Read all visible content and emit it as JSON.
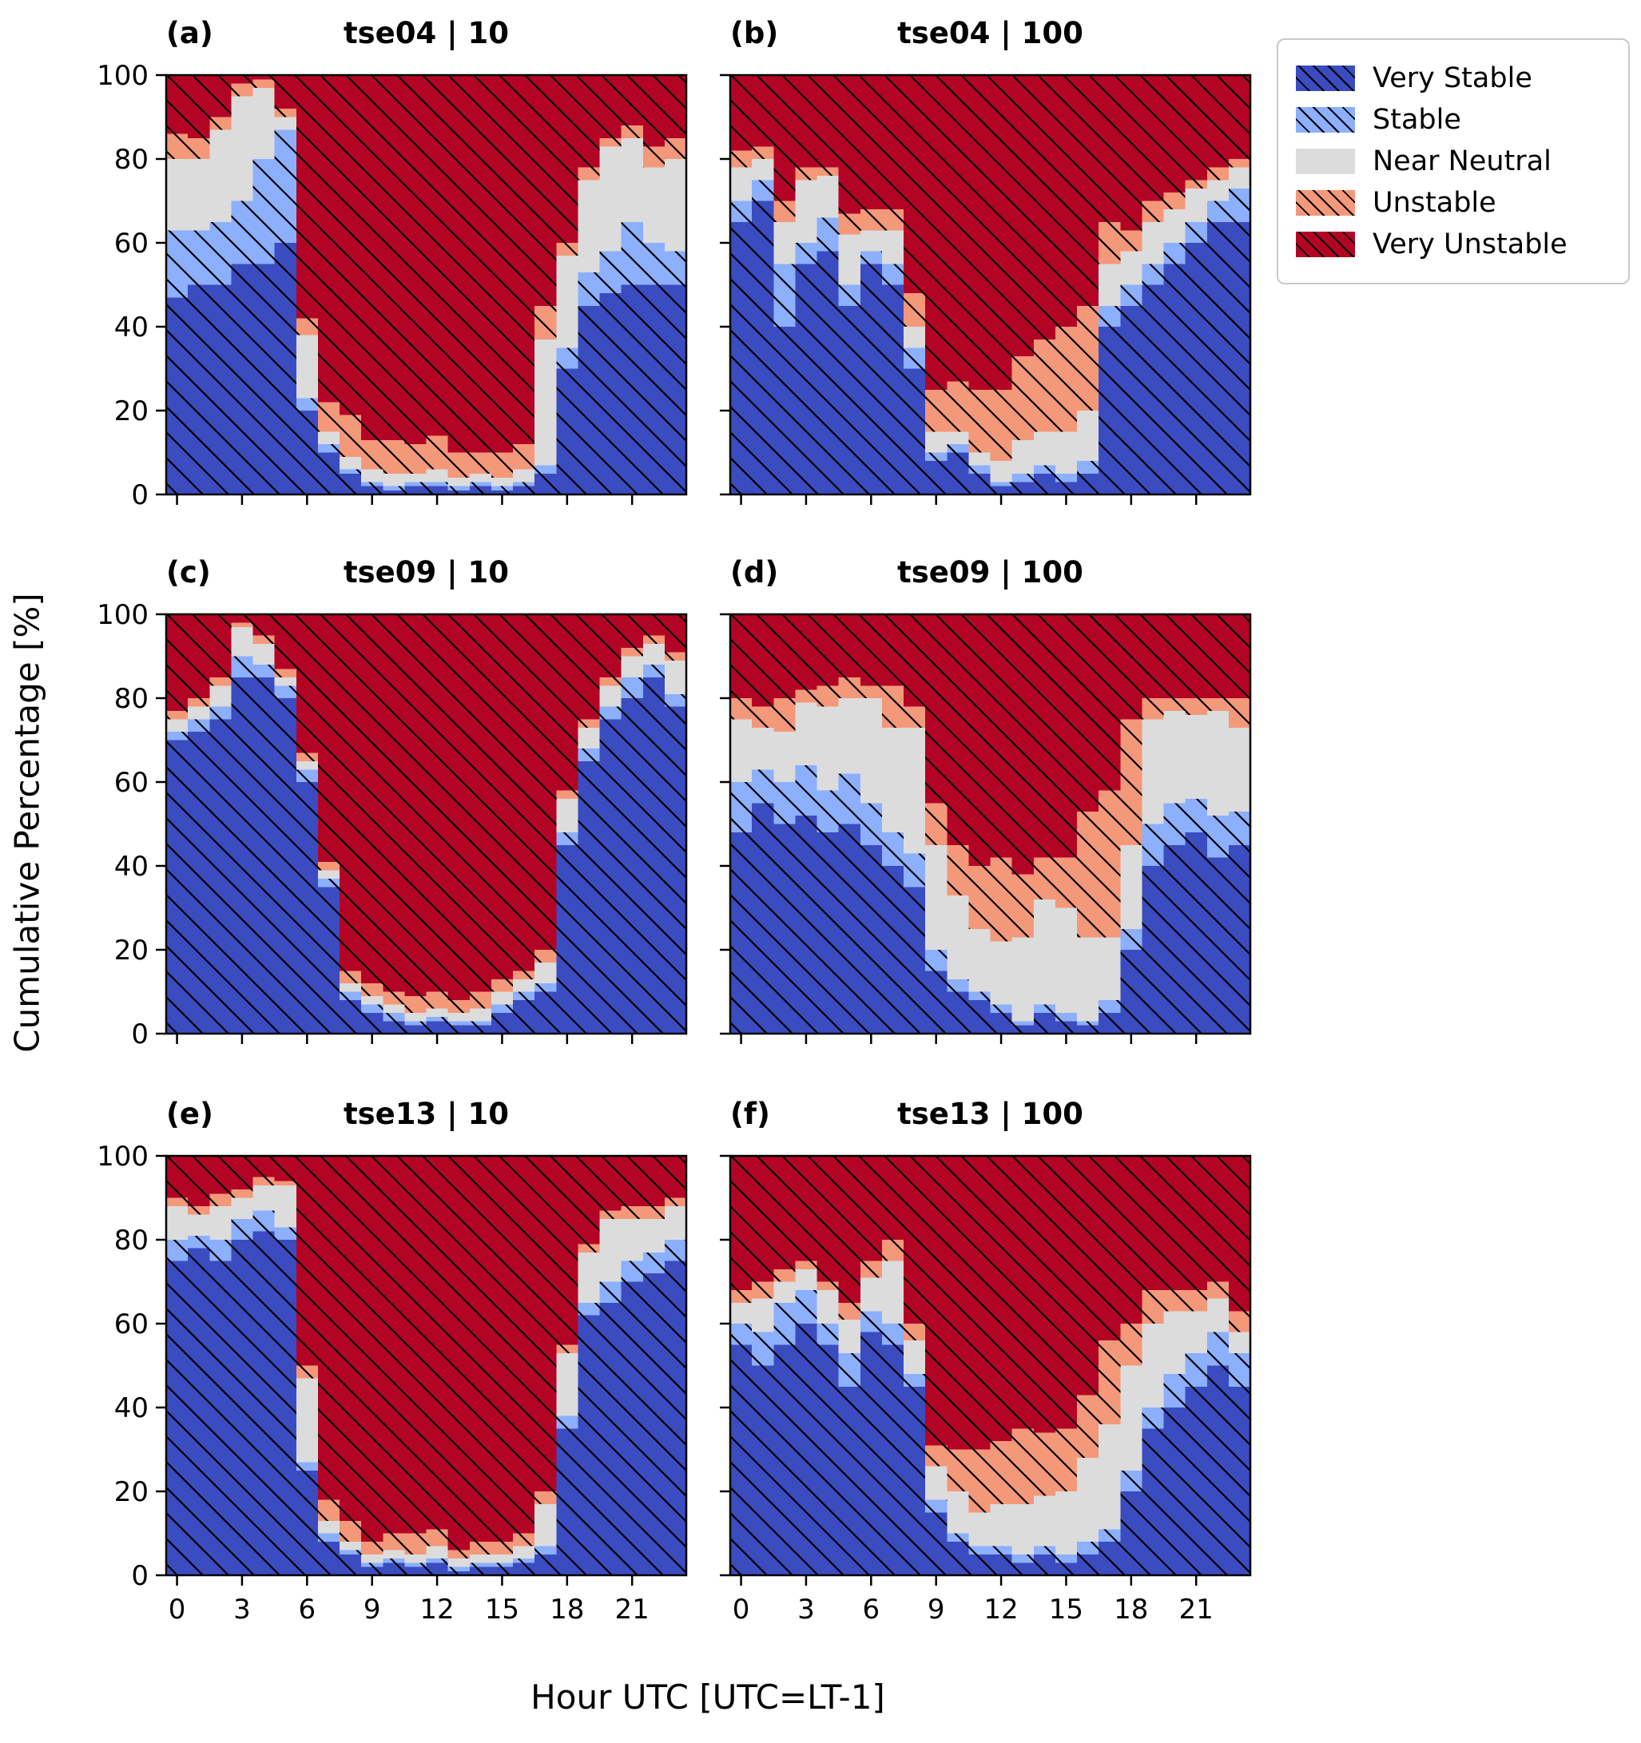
{
  "chart_data": {
    "type": "bar",
    "stacked": true,
    "xlabel": "Hour UTC [UTC=LT-1]",
    "ylabel": "Cumulative Percentage [%]",
    "ylim": [
      0,
      100
    ],
    "yticks": [
      0,
      20,
      40,
      60,
      80,
      100
    ],
    "xticks": [
      0,
      3,
      6,
      9,
      12,
      15,
      18,
      21
    ],
    "hours": [
      0,
      1,
      2,
      3,
      4,
      5,
      6,
      7,
      8,
      9,
      10,
      11,
      12,
      13,
      14,
      15,
      16,
      17,
      18,
      19,
      20,
      21,
      22,
      23
    ],
    "categories": [
      "Very Stable",
      "Stable",
      "Near Neutral",
      "Unstable",
      "Very Unstable"
    ],
    "colors": {
      "Very Stable": "#3b4cc0",
      "Stable": "#8caffe",
      "Near Neutral": "#dcdcdc",
      "Unstable": "#f4987a",
      "Very Unstable": "#b40426"
    },
    "hatched": [
      true,
      true,
      false,
      true,
      true
    ],
    "panels": [
      {
        "id": "a",
        "panel_label": "(a)",
        "title": "tse04 | 10",
        "show_yticklabels": true,
        "show_xticklabels": false,
        "series": {
          "Very Stable": [
            47,
            50,
            50,
            55,
            55,
            60,
            20,
            10,
            5,
            2,
            1,
            2,
            2,
            1,
            2,
            1,
            2,
            5,
            30,
            45,
            48,
            50,
            50,
            50
          ],
          "Stable": [
            16,
            13,
            15,
            15,
            25,
            27,
            3,
            2,
            1,
            1,
            1,
            1,
            1,
            1,
            1,
            1,
            1,
            2,
            5,
            8,
            10,
            15,
            10,
            8
          ],
          "Near Neutral": [
            17,
            17,
            22,
            25,
            17,
            3,
            15,
            3,
            3,
            3,
            3,
            2,
            3,
            2,
            2,
            2,
            3,
            30,
            22,
            22,
            25,
            20,
            18,
            22
          ],
          "Unstable": [
            6,
            5,
            3,
            3,
            2,
            2,
            4,
            7,
            10,
            7,
            8,
            7,
            8,
            6,
            5,
            6,
            6,
            8,
            3,
            3,
            2,
            3,
            5,
            5
          ],
          "Very Unstable": [
            14,
            15,
            10,
            2,
            1,
            8,
            58,
            78,
            81,
            87,
            87,
            88,
            86,
            90,
            90,
            90,
            88,
            55,
            40,
            22,
            15,
            12,
            17,
            15
          ]
        }
      },
      {
        "id": "b",
        "panel_label": "(b)",
        "title": "tse04 | 100",
        "show_yticklabels": false,
        "show_xticklabels": false,
        "series": {
          "Very Stable": [
            65,
            70,
            40,
            55,
            58,
            45,
            55,
            50,
            30,
            8,
            10,
            5,
            2,
            3,
            5,
            3,
            5,
            40,
            45,
            50,
            55,
            60,
            65,
            65
          ],
          "Stable": [
            5,
            5,
            15,
            5,
            8,
            5,
            3,
            5,
            5,
            2,
            2,
            2,
            1,
            2,
            2,
            2,
            3,
            5,
            5,
            5,
            5,
            5,
            5,
            8
          ],
          "Near Neutral": [
            8,
            5,
            10,
            15,
            10,
            12,
            5,
            8,
            5,
            5,
            3,
            3,
            5,
            8,
            8,
            10,
            12,
            10,
            8,
            10,
            8,
            8,
            5,
            5
          ],
          "Unstable": [
            4,
            3,
            5,
            3,
            2,
            5,
            5,
            5,
            8,
            10,
            12,
            15,
            17,
            20,
            22,
            25,
            25,
            10,
            5,
            5,
            4,
            2,
            3,
            2
          ],
          "Very Unstable": [
            18,
            17,
            30,
            22,
            22,
            33,
            32,
            32,
            52,
            75,
            73,
            75,
            75,
            67,
            63,
            60,
            55,
            35,
            37,
            30,
            28,
            25,
            22,
            20
          ]
        }
      },
      {
        "id": "c",
        "panel_label": "(c)",
        "title": "tse09 | 10",
        "show_yticklabels": true,
        "show_xticklabels": false,
        "series": {
          "Very Stable": [
            70,
            72,
            75,
            85,
            85,
            80,
            60,
            35,
            8,
            5,
            3,
            2,
            3,
            2,
            2,
            5,
            8,
            10,
            45,
            65,
            75,
            80,
            85,
            78
          ],
          "Stable": [
            2,
            3,
            3,
            5,
            3,
            3,
            3,
            2,
            2,
            2,
            2,
            1,
            1,
            1,
            1,
            2,
            2,
            2,
            3,
            3,
            3,
            5,
            3,
            3
          ],
          "Near Neutral": [
            3,
            3,
            5,
            7,
            5,
            2,
            2,
            2,
            2,
            2,
            2,
            2,
            2,
            2,
            3,
            3,
            3,
            5,
            8,
            5,
            5,
            5,
            5,
            8
          ],
          "Unstable": [
            2,
            2,
            2,
            1,
            2,
            2,
            2,
            2,
            3,
            3,
            3,
            4,
            4,
            3,
            4,
            3,
            2,
            3,
            2,
            2,
            2,
            2,
            2,
            2
          ],
          "Very Unstable": [
            23,
            20,
            15,
            2,
            5,
            13,
            33,
            59,
            85,
            88,
            90,
            91,
            90,
            92,
            90,
            87,
            85,
            80,
            42,
            25,
            15,
            8,
            5,
            9
          ]
        }
      },
      {
        "id": "d",
        "panel_label": "(d)",
        "title": "tse09 | 100",
        "show_yticklabels": false,
        "show_xticklabels": false,
        "series": {
          "Very Stable": [
            48,
            55,
            50,
            52,
            48,
            50,
            45,
            40,
            35,
            15,
            10,
            8,
            5,
            2,
            5,
            3,
            2,
            5,
            20,
            40,
            45,
            48,
            42,
            45
          ],
          "Stable": [
            12,
            8,
            10,
            12,
            10,
            12,
            10,
            8,
            8,
            5,
            3,
            2,
            2,
            1,
            2,
            2,
            1,
            3,
            5,
            10,
            10,
            8,
            10,
            8
          ],
          "Near Neutral": [
            15,
            10,
            12,
            15,
            20,
            18,
            25,
            25,
            30,
            25,
            20,
            15,
            15,
            20,
            25,
            25,
            20,
            15,
            20,
            25,
            22,
            20,
            25,
            20
          ],
          "Unstable": [
            5,
            5,
            8,
            3,
            5,
            5,
            3,
            10,
            5,
            10,
            12,
            15,
            20,
            15,
            10,
            12,
            30,
            35,
            30,
            5,
            3,
            4,
            3,
            7
          ],
          "Very Unstable": [
            20,
            22,
            20,
            18,
            17,
            15,
            17,
            17,
            22,
            45,
            55,
            60,
            58,
            62,
            58,
            58,
            47,
            42,
            25,
            20,
            20,
            20,
            20,
            20
          ]
        }
      },
      {
        "id": "e",
        "panel_label": "(e)",
        "title": "tse13 | 10",
        "show_yticklabels": true,
        "show_xticklabels": true,
        "series": {
          "Very Stable": [
            75,
            78,
            75,
            80,
            82,
            80,
            25,
            8,
            5,
            2,
            3,
            2,
            3,
            1,
            2,
            2,
            3,
            5,
            35,
            62,
            65,
            70,
            72,
            75
          ],
          "Stable": [
            5,
            3,
            5,
            5,
            5,
            3,
            2,
            2,
            1,
            1,
            1,
            1,
            1,
            1,
            1,
            1,
            1,
            2,
            3,
            3,
            5,
            5,
            5,
            5
          ],
          "Near Neutral": [
            8,
            5,
            8,
            5,
            6,
            10,
            20,
            3,
            2,
            2,
            2,
            2,
            3,
            2,
            2,
            2,
            3,
            10,
            15,
            12,
            15,
            10,
            8,
            8
          ],
          "Unstable": [
            2,
            2,
            3,
            2,
            2,
            1,
            3,
            5,
            5,
            3,
            4,
            5,
            4,
            2,
            3,
            3,
            3,
            3,
            2,
            2,
            2,
            3,
            3,
            2
          ],
          "Very Unstable": [
            10,
            12,
            9,
            8,
            5,
            6,
            50,
            82,
            87,
            92,
            90,
            90,
            89,
            94,
            92,
            92,
            90,
            80,
            45,
            21,
            13,
            12,
            12,
            10
          ]
        }
      },
      {
        "id": "f",
        "panel_label": "(f)",
        "title": "tse13 | 100",
        "show_yticklabels": false,
        "show_xticklabels": true,
        "series": {
          "Very Stable": [
            55,
            50,
            55,
            60,
            55,
            45,
            58,
            55,
            45,
            15,
            8,
            5,
            5,
            3,
            5,
            3,
            5,
            8,
            20,
            35,
            40,
            45,
            50,
            45
          ],
          "Stable": [
            5,
            8,
            10,
            8,
            5,
            8,
            5,
            5,
            3,
            3,
            2,
            2,
            2,
            2,
            2,
            2,
            3,
            3,
            5,
            5,
            8,
            8,
            8,
            8
          ],
          "Near Neutral": [
            5,
            8,
            5,
            5,
            8,
            8,
            8,
            15,
            8,
            8,
            10,
            8,
            10,
            12,
            12,
            15,
            20,
            25,
            25,
            20,
            15,
            10,
            8,
            5
          ],
          "Unstable": [
            3,
            4,
            3,
            2,
            2,
            4,
            4,
            5,
            4,
            5,
            10,
            15,
            15,
            18,
            15,
            15,
            15,
            20,
            10,
            8,
            5,
            5,
            4,
            5
          ],
          "Very Unstable": [
            32,
            30,
            27,
            25,
            30,
            35,
            25,
            20,
            40,
            69,
            70,
            70,
            68,
            65,
            66,
            65,
            57,
            44,
            40,
            32,
            32,
            32,
            30,
            37
          ]
        }
      }
    ]
  },
  "legend": {
    "entries": [
      {
        "label": "Very Stable",
        "color": "#3b4cc0",
        "hatch": true
      },
      {
        "label": "Stable",
        "color": "#8caffe",
        "hatch": true
      },
      {
        "label": "Near Neutral",
        "color": "#dcdcdc",
        "hatch": false
      },
      {
        "label": "Unstable",
        "color": "#f4987a",
        "hatch": true
      },
      {
        "label": "Very Unstable",
        "color": "#b40426",
        "hatch": true
      }
    ]
  },
  "axis_labels": {
    "x": "Hour UTC [UTC=LT-1]",
    "y": "Cumulative Percentage [%]"
  }
}
